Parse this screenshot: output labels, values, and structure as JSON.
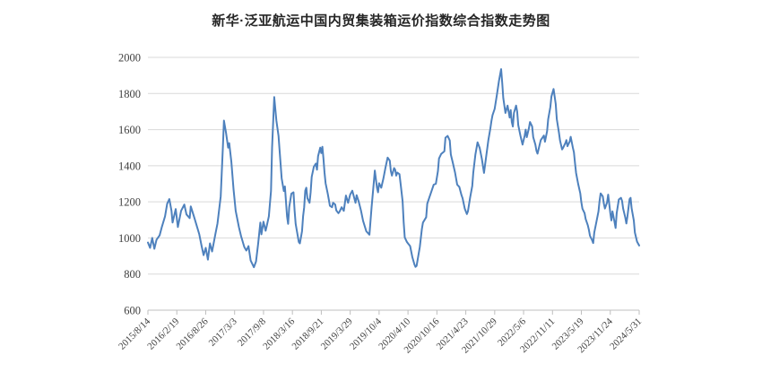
{
  "page": {
    "background": "#ffffff"
  },
  "chart_data": {
    "type": "line",
    "title": "新华·泛亚航运中国内贸集装箱运价指数综合指数走势图",
    "xlabel": "",
    "ylabel": "",
    "ylim": [
      600,
      2000
    ],
    "y_tick_step": 200,
    "y_tick_labels": [
      "600",
      "800",
      "1000",
      "1200",
      "1400",
      "1600",
      "1800",
      "2000"
    ],
    "x_tick_labels": [
      "2015/8/14",
      "2016/2/19",
      "2016/8/26",
      "2017/3/3",
      "2017/9/8",
      "2018/3/16",
      "2018/9/21",
      "2019/3/29",
      "2019/10/4",
      "2020/4/10",
      "2020/10/16",
      "2021/4/23",
      "2021/10/29",
      "2022/5/6",
      "2022/11/11",
      "2023/5/19",
      "2023/11/24",
      "2024/5/31"
    ],
    "x_tick_interval_points": 27,
    "x_range": [
      0,
      459
    ],
    "x_unit": "weeks since 2015/8/14 (weekly index readings)",
    "grid": true,
    "legend": "none",
    "colors": {
      "line": "#4e81bd",
      "grid": "#d9d9d9",
      "axis": "#bfbfbf",
      "tick_label": "#404040",
      "title": "#262626"
    },
    "series": [
      {
        "points": [
          [
            0,
            975
          ],
          [
            2,
            945
          ],
          [
            4,
            1000
          ],
          [
            6,
            940
          ],
          [
            8,
            990
          ],
          [
            11,
            1015
          ],
          [
            13,
            1060
          ],
          [
            16,
            1120
          ],
          [
            18,
            1190
          ],
          [
            20,
            1215
          ],
          [
            22,
            1150
          ],
          [
            23,
            1085
          ],
          [
            26,
            1160
          ],
          [
            28,
            1060
          ],
          [
            31,
            1150
          ],
          [
            34,
            1185
          ],
          [
            36,
            1130
          ],
          [
            39,
            1110
          ],
          [
            40,
            1175
          ],
          [
            43,
            1120
          ],
          [
            45,
            1080
          ],
          [
            48,
            1020
          ],
          [
            50,
            960
          ],
          [
            52,
            905
          ],
          [
            54,
            945
          ],
          [
            56,
            880
          ],
          [
            58,
            970
          ],
          [
            60,
            925
          ],
          [
            63,
            1020
          ],
          [
            65,
            1080
          ],
          [
            68,
            1230
          ],
          [
            70,
            1500
          ],
          [
            71,
            1650
          ],
          [
            73,
            1580
          ],
          [
            75,
            1500
          ],
          [
            76,
            1525
          ],
          [
            78,
            1420
          ],
          [
            80,
            1270
          ],
          [
            82,
            1150
          ],
          [
            85,
            1060
          ],
          [
            87,
            1010
          ],
          [
            90,
            950
          ],
          [
            92,
            930
          ],
          [
            94,
            955
          ],
          [
            96,
            875
          ],
          [
            99,
            838
          ],
          [
            101,
            870
          ],
          [
            103,
            970
          ],
          [
            105,
            1085
          ],
          [
            106,
            1020
          ],
          [
            108,
            1090
          ],
          [
            110,
            1040
          ],
          [
            111,
            1065
          ],
          [
            113,
            1120
          ],
          [
            115,
            1260
          ],
          [
            116,
            1500
          ],
          [
            118,
            1780
          ],
          [
            120,
            1650
          ],
          [
            122,
            1565
          ],
          [
            123,
            1490
          ],
          [
            125,
            1330
          ],
          [
            127,
            1260
          ],
          [
            128,
            1285
          ],
          [
            130,
            1120
          ],
          [
            131,
            1078
          ],
          [
            132,
            1170
          ],
          [
            134,
            1245
          ],
          [
            136,
            1253
          ],
          [
            137,
            1153
          ],
          [
            138,
            1078
          ],
          [
            140,
            1012
          ],
          [
            141,
            978
          ],
          [
            142,
            970
          ],
          [
            144,
            1037
          ],
          [
            145,
            1120
          ],
          [
            146,
            1170
          ],
          [
            147,
            1262
          ],
          [
            148,
            1278
          ],
          [
            149,
            1220
          ],
          [
            151,
            1195
          ],
          [
            152,
            1253
          ],
          [
            153,
            1338
          ],
          [
            155,
            1395
          ],
          [
            157,
            1412
          ],
          [
            158,
            1378
          ],
          [
            159,
            1453
          ],
          [
            161,
            1500
          ],
          [
            162,
            1470
          ],
          [
            163,
            1505
          ],
          [
            164,
            1440
          ],
          [
            165,
            1362
          ],
          [
            166,
            1303
          ],
          [
            168,
            1245
          ],
          [
            169,
            1212
          ],
          [
            170,
            1178
          ],
          [
            172,
            1170
          ],
          [
            173,
            1195
          ],
          [
            175,
            1185
          ],
          [
            176,
            1153
          ],
          [
            178,
            1137
          ],
          [
            179,
            1145
          ],
          [
            181,
            1170
          ],
          [
            183,
            1150
          ],
          [
            185,
            1235
          ],
          [
            187,
            1195
          ],
          [
            189,
            1240
          ],
          [
            191,
            1262
          ],
          [
            194,
            1195
          ],
          [
            195,
            1237
          ],
          [
            197,
            1200
          ],
          [
            199,
            1153
          ],
          [
            201,
            1095
          ],
          [
            204,
            1037
          ],
          [
            207,
            1018
          ],
          [
            209,
            1170
          ],
          [
            211,
            1303
          ],
          [
            212,
            1373
          ],
          [
            214,
            1278
          ],
          [
            215,
            1253
          ],
          [
            216,
            1303
          ],
          [
            218,
            1278
          ],
          [
            220,
            1330
          ],
          [
            222,
            1390
          ],
          [
            224,
            1445
          ],
          [
            226,
            1428
          ],
          [
            227,
            1370
          ],
          [
            228,
            1345
          ],
          [
            230,
            1387
          ],
          [
            231,
            1378
          ],
          [
            232,
            1345
          ],
          [
            233,
            1362
          ],
          [
            235,
            1353
          ],
          [
            236,
            1303
          ],
          [
            238,
            1203
          ],
          [
            239,
            1087
          ],
          [
            240,
            1003
          ],
          [
            242,
            978
          ],
          [
            243,
            970
          ],
          [
            245,
            955
          ],
          [
            247,
            895
          ],
          [
            249,
            853
          ],
          [
            250,
            840
          ],
          [
            251,
            845
          ],
          [
            252,
            880
          ],
          [
            254,
            950
          ],
          [
            256,
            1050
          ],
          [
            257,
            1085
          ],
          [
            260,
            1115
          ],
          [
            261,
            1190
          ],
          [
            263,
            1225
          ],
          [
            265,
            1260
          ],
          [
            267,
            1295
          ],
          [
            269,
            1300
          ],
          [
            271,
            1370
          ],
          [
            272,
            1440
          ],
          [
            274,
            1465
          ],
          [
            277,
            1480
          ],
          [
            278,
            1555
          ],
          [
            280,
            1565
          ],
          [
            282,
            1540
          ],
          [
            283,
            1462
          ],
          [
            285,
            1412
          ],
          [
            287,
            1362
          ],
          [
            289,
            1295
          ],
          [
            291,
            1282
          ],
          [
            293,
            1237
          ],
          [
            294,
            1220
          ],
          [
            296,
            1163
          ],
          [
            298,
            1132
          ],
          [
            299,
            1148
          ],
          [
            301,
            1223
          ],
          [
            303,
            1288
          ],
          [
            304,
            1360
          ],
          [
            306,
            1462
          ],
          [
            308,
            1530
          ],
          [
            310,
            1498
          ],
          [
            312,
            1438
          ],
          [
            314,
            1360
          ],
          [
            316,
            1450
          ],
          [
            318,
            1540
          ],
          [
            320,
            1607
          ],
          [
            321,
            1648
          ],
          [
            322,
            1680
          ],
          [
            324,
            1715
          ],
          [
            326,
            1790
          ],
          [
            328,
            1870
          ],
          [
            330,
            1935
          ],
          [
            331,
            1860
          ],
          [
            332,
            1775
          ],
          [
            334,
            1692
          ],
          [
            336,
            1733
          ],
          [
            338,
            1667
          ],
          [
            339,
            1708
          ],
          [
            340,
            1642
          ],
          [
            341,
            1617
          ],
          [
            342,
            1692
          ],
          [
            344,
            1733
          ],
          [
            345,
            1700
          ],
          [
            346,
            1625
          ],
          [
            348,
            1567
          ],
          [
            349,
            1542
          ],
          [
            350,
            1517
          ],
          [
            352,
            1567
          ],
          [
            353,
            1600
          ],
          [
            354,
            1558
          ],
          [
            356,
            1608
          ],
          [
            357,
            1642
          ],
          [
            359,
            1617
          ],
          [
            360,
            1558
          ],
          [
            362,
            1517
          ],
          [
            363,
            1483
          ],
          [
            364,
            1467
          ],
          [
            366,
            1517
          ],
          [
            367,
            1542
          ],
          [
            369,
            1558
          ],
          [
            370,
            1567
          ],
          [
            371,
            1533
          ],
          [
            373,
            1592
          ],
          [
            374,
            1658
          ],
          [
            376,
            1725
          ],
          [
            377,
            1783
          ],
          [
            379,
            1825
          ],
          [
            381,
            1742
          ],
          [
            382,
            1658
          ],
          [
            384,
            1583
          ],
          [
            385,
            1540
          ],
          [
            387,
            1490
          ],
          [
            388,
            1500
          ],
          [
            390,
            1525
          ],
          [
            391,
            1542
          ],
          [
            392,
            1508
          ],
          [
            394,
            1533
          ],
          [
            395,
            1560
          ],
          [
            397,
            1500
          ],
          [
            398,
            1475
          ],
          [
            399,
            1415
          ],
          [
            400,
            1360
          ],
          [
            402,
            1300
          ],
          [
            404,
            1247
          ],
          [
            405,
            1197
          ],
          [
            406,
            1162
          ],
          [
            408,
            1137
          ],
          [
            409,
            1105
          ],
          [
            411,
            1070
          ],
          [
            412,
            1045
          ],
          [
            413,
            1012
          ],
          [
            415,
            987
          ],
          [
            416,
            972
          ],
          [
            417,
            1030
          ],
          [
            419,
            1087
          ],
          [
            421,
            1147
          ],
          [
            422,
            1205
          ],
          [
            423,
            1247
          ],
          [
            425,
            1230
          ],
          [
            426,
            1190
          ],
          [
            427,
            1163
          ],
          [
            429,
            1197
          ],
          [
            430,
            1240
          ],
          [
            432,
            1137
          ],
          [
            433,
            1097
          ],
          [
            434,
            1147
          ],
          [
            436,
            1088
          ],
          [
            437,
            1055
          ],
          [
            438,
            1137
          ],
          [
            440,
            1213
          ],
          [
            442,
            1222
          ],
          [
            443,
            1205
          ],
          [
            444,
            1163
          ],
          [
            446,
            1113
          ],
          [
            447,
            1080
          ],
          [
            448,
            1120
          ],
          [
            450,
            1215
          ],
          [
            451,
            1222
          ],
          [
            452,
            1163
          ],
          [
            454,
            1097
          ],
          [
            455,
            1030
          ],
          [
            457,
            980
          ],
          [
            459,
            958
          ]
        ]
      }
    ]
  }
}
